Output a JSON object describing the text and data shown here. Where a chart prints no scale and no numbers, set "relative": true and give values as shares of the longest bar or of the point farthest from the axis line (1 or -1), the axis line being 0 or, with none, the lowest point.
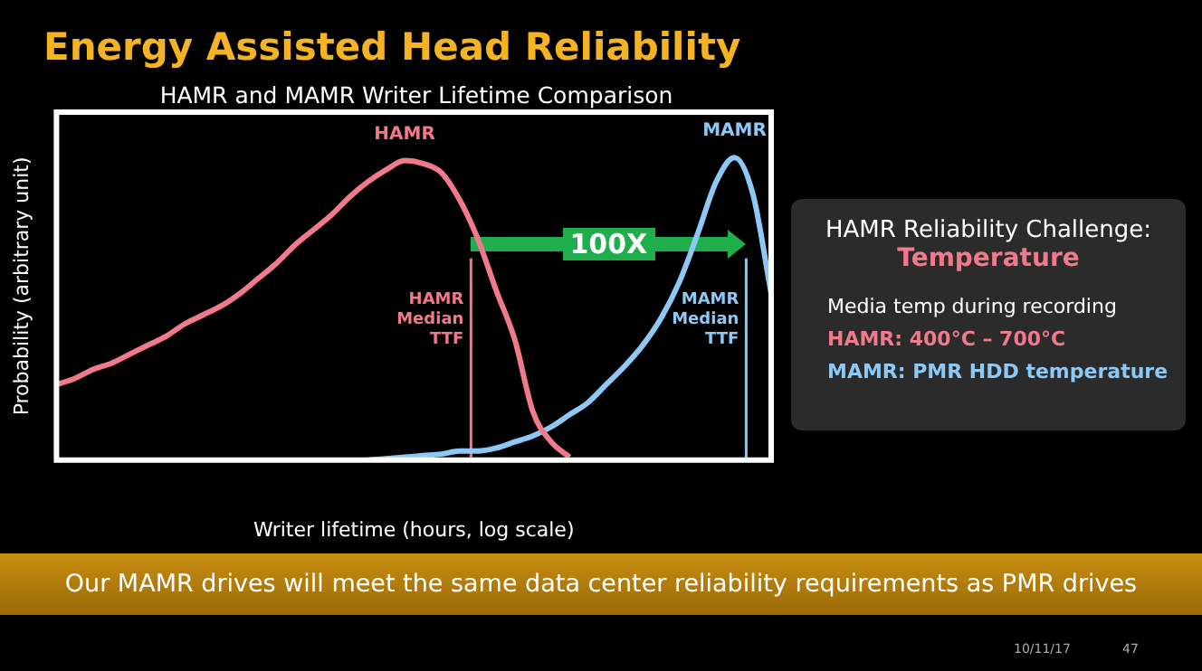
{
  "chart_data": {
    "type": "line",
    "relative": true,
    "title": "Energy Assisted Head Reliability",
    "subtitle": "HAMR and MAMR Writer Lifetime Comparison",
    "xlabel": "Writer lifetime (hours, log scale)",
    "ylabel": "Probability (arbitrary unit)",
    "categories": [
      null,
      null,
      null,
      null,
      null,
      null,
      null,
      null,
      null,
      null,
      null,
      null,
      null,
      null,
      null,
      null,
      null,
      null,
      null,
      null,
      null,
      null,
      null,
      null,
      null,
      null,
      null,
      null,
      null,
      null,
      null,
      null,
      null,
      null,
      null,
      null,
      null,
      null,
      null,
      null
    ],
    "series": [
      {
        "name": "HAMR",
        "color": "#f07a8a",
        "values": [
          0.25,
          0.27,
          0.3,
          0.32,
          0.35,
          0.38,
          0.41,
          0.45,
          0.48,
          0.51,
          0.55,
          0.6,
          0.65,
          0.71,
          0.76,
          0.81,
          0.87,
          0.92,
          0.96,
          0.99,
          0.98,
          0.95,
          0.86,
          0.73,
          0.56,
          0.4,
          0.16,
          0.06,
          0.01,
          null,
          null,
          null,
          null,
          null,
          null,
          null,
          null,
          null,
          null,
          null
        ]
      },
      {
        "name": "MAMR",
        "color": "#8ec8f5",
        "values": [
          null,
          null,
          null,
          null,
          null,
          null,
          null,
          null,
          null,
          null,
          null,
          null,
          null,
          null,
          null,
          null,
          null,
          0,
          0.005,
          0.01,
          0.015,
          0.02,
          0.03,
          0.03,
          0.04,
          0.06,
          0.08,
          0.11,
          0.15,
          0.19,
          0.25,
          0.31,
          0.38,
          0.47,
          0.59,
          0.75,
          0.92,
          1,
          0.88,
          0.55
        ]
      }
    ],
    "annotations": [
      "100X",
      "HAMR Reliability Challenge:",
      "Temperature",
      "Media temp during recording",
      "HAMR:  400°C – 700°C",
      "MAMR:  PMR HDD temperature",
      "Our MAMR drives will meet the same data center reliability requirements as PMR drives",
      "10/11/17",
      "47",
      "HAMR\nMedian\nTTF",
      "MAMR\nMedian\nTTF"
    ],
    "legend": false,
    "grid": false,
    "marker": "none",
    "line_style": "solid"
  }
}
